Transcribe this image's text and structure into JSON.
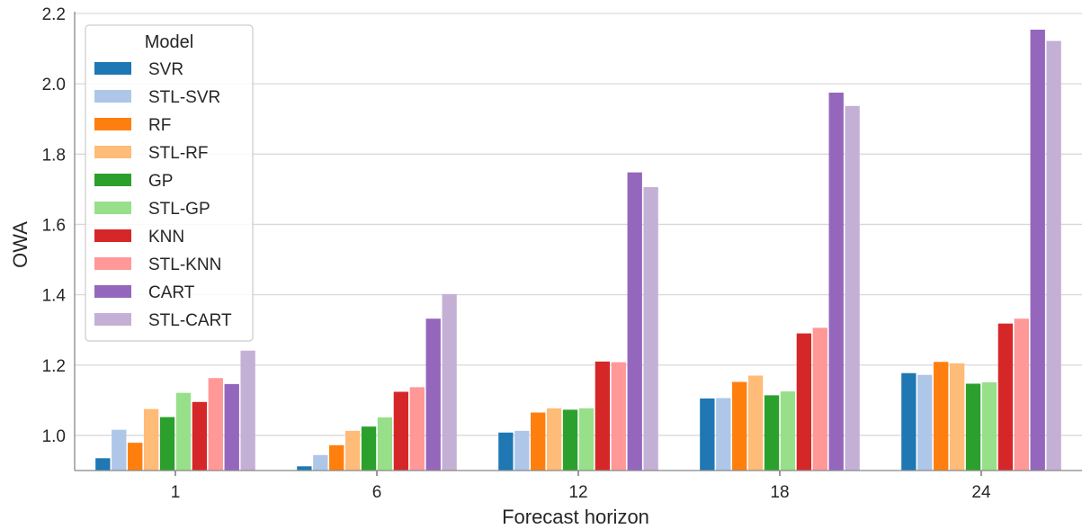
{
  "chart_data": {
    "type": "bar",
    "xlabel": "Forecast horizon",
    "ylabel": "OWA",
    "ylim": [
      0.9,
      2.2
    ],
    "yticks": [
      "1.0",
      "1.2",
      "1.4",
      "1.6",
      "1.8",
      "2.0",
      "2.2"
    ],
    "grid": true,
    "legend": {
      "title": "Model",
      "position": "top-left"
    },
    "categories": [
      "1",
      "6",
      "12",
      "18",
      "24"
    ],
    "series": [
      {
        "name": "SVR",
        "color": "#1f77b4",
        "values": [
          0.935,
          0.912,
          1.008,
          1.105,
          1.177
        ]
      },
      {
        "name": "STL-SVR",
        "color": "#aec7e8",
        "values": [
          1.016,
          0.944,
          1.013,
          1.106,
          1.172
        ]
      },
      {
        "name": "RF",
        "color": "#ff7f0e",
        "values": [
          0.979,
          0.972,
          1.065,
          1.152,
          1.209
        ]
      },
      {
        "name": "STL-RF",
        "color": "#ffbb78",
        "values": [
          1.075,
          1.013,
          1.077,
          1.17,
          1.205
        ]
      },
      {
        "name": "GP",
        "color": "#2ca02c",
        "values": [
          1.052,
          1.025,
          1.073,
          1.114,
          1.147
        ]
      },
      {
        "name": "STL-GP",
        "color": "#98df8a",
        "values": [
          1.121,
          1.051,
          1.077,
          1.125,
          1.151
        ]
      },
      {
        "name": "KNN",
        "color": "#d62728",
        "values": [
          1.095,
          1.124,
          1.21,
          1.29,
          1.318
        ]
      },
      {
        "name": "STL-KNN",
        "color": "#ff9896",
        "values": [
          1.163,
          1.137,
          1.208,
          1.306,
          1.332
        ]
      },
      {
        "name": "CART",
        "color": "#9467bd",
        "values": [
          1.146,
          1.332,
          1.748,
          1.975,
          2.154
        ]
      },
      {
        "name": "STL-CART",
        "color": "#c5b0d5",
        "values": [
          1.241,
          1.402,
          1.706,
          1.937,
          2.122
        ]
      }
    ]
  }
}
